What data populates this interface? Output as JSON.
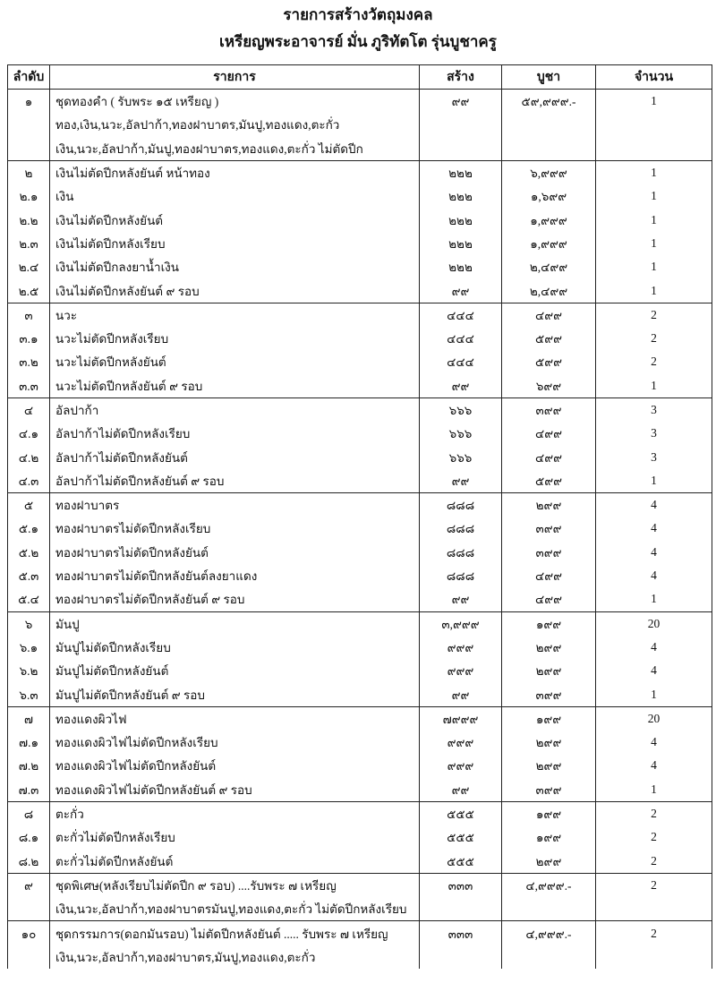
{
  "title": "รายการสร้างวัตถุมงคล",
  "subtitle": "เหรียญพระอาจารย์ มั่น ภูริทัตโต รุ่นบูชาครู",
  "columns": [
    "ลำดับ",
    "รายการ",
    "สร้าง",
    "บูชา",
    "จำนวน"
  ],
  "groups": [
    [
      [
        "๑",
        "ชุดทองคำ ( รับพระ ๑๕ เหรียญ )",
        "๙๙",
        "๕๙,๙๙๙.-",
        "1"
      ],
      [
        "",
        "ทอง,เงิน,นวะ,อัลปาก้า,ทองฝาบาตร,มันปู,ทองแดง,ตะกั่ว",
        "",
        "",
        ""
      ],
      [
        "",
        "เงิน,นวะ,อัลปาก้า,มันปู,ทองฝาบาตร,ทองแดง,ตะกั่ว  ไม่ตัดปีก",
        "",
        "",
        ""
      ]
    ],
    [
      [
        "๒",
        "เงินไม่ตัดปีกหลังยันต์ หน้าทอง",
        "๒๒๒",
        "๖,๙๙๙",
        "1"
      ],
      [
        "๒.๑",
        "เงิน",
        "๒๒๒",
        "๑,๖๙๙",
        "1"
      ],
      [
        "๒.๒",
        "เงินไม่ตัดปีกหลังยันต์",
        "๒๒๒",
        "๑,๙๙๙",
        "1"
      ],
      [
        "๒.๓",
        "เงินไม่ตัดปีกหลังเรียบ",
        "๒๒๒",
        "๑,๙๙๙",
        "1"
      ],
      [
        "๒.๔",
        "เงินไม่ตัดปีกลงยาน้ำเงิน",
        "๒๒๒",
        "๒,๔๙๙",
        "1"
      ],
      [
        "๒.๕",
        "เงินไม่ตัดปีกหลังยันต์ ๙ รอบ",
        "๙๙",
        "๒,๔๙๙",
        "1"
      ]
    ],
    [
      [
        "๓",
        "นวะ",
        "๔๔๔",
        "๔๙๙",
        "2"
      ],
      [
        "๓.๑",
        "นวะไม่ตัดปีกหลังเรียบ",
        "๔๔๔",
        "๕๙๙",
        "2"
      ],
      [
        "๓.๒",
        "นวะไม่ตัดปีกหลังยันต์",
        "๔๔๔",
        "๕๙๙",
        "2"
      ],
      [
        "๓.๓",
        "นวะไม่ตัดปีกหลังยันต์ ๙ รอบ",
        "๙๙",
        "๖๙๙",
        "1"
      ]
    ],
    [
      [
        "๔",
        "อัลปาก้า",
        "๖๖๖",
        "๓๙๙",
        "3"
      ],
      [
        "๔.๑",
        "อัลปาก้าไม่ตัดปีกหลังเรียบ",
        "๖๖๖",
        "๔๙๙",
        "3"
      ],
      [
        "๔.๒",
        "อัลปาก้าไม่ตัดปีกหลังยันต์",
        "๖๖๖",
        "๔๙๙",
        "3"
      ],
      [
        "๔.๓",
        "อัลปาก้าไม่ตัดปีกหลังยันต์ ๙ รอบ",
        "๙๙",
        "๕๙๙",
        "1"
      ]
    ],
    [
      [
        "๕",
        "ทองฝาบาตร",
        "๘๘๘",
        "๒๙๙",
        "4"
      ],
      [
        "๕.๑",
        "ทองฝาบาตรไม่ตัดปีกหลังเรียบ",
        "๘๘๘",
        "๓๙๙",
        "4"
      ],
      [
        "๕.๒",
        "ทองฝาบาตรไม่ตัดปีกหลังยันต์",
        "๘๘๘",
        "๓๙๙",
        "4"
      ],
      [
        "๕.๓",
        "ทองฝาบาตรไม่ตัดปีกหลังยันต์ลงยาแดง",
        "๘๘๘",
        "๔๙๙",
        "4"
      ],
      [
        "๕.๔",
        "ทองฝาบาตรไม่ตัดปีกหลังยันต์ ๙ รอบ",
        "๙๙",
        "๔๙๙",
        "1"
      ]
    ],
    [
      [
        "๖",
        "มันปู",
        "๓,๙๙๙",
        "๑๙๙",
        "20"
      ],
      [
        "๖.๑",
        "มันปูไม่ตัดปีกหลังเรียบ",
        "๙๙๙",
        "๒๙๙",
        "4"
      ],
      [
        "๖.๒",
        "มันปูไม่ตัดปีกหลังยันต์",
        "๙๙๙",
        "๒๙๙",
        "4"
      ],
      [
        "๖.๓",
        "มันปูไม่ตัดปีกหลังยันต์ ๙ รอบ",
        "๙๙",
        "๓๙๙",
        "1"
      ]
    ],
    [
      [
        "๗",
        "ทองแดงผิวไฟ",
        "๗๙๙๙",
        "๑๙๙",
        "20"
      ],
      [
        "๗.๑",
        "ทองแดงผิวไฟไม่ตัดปีกหลังเรียบ",
        "๙๙๙",
        "๒๙๙",
        "4"
      ],
      [
        "๗.๒",
        "ทองแดงผิวไฟไม่ตัดปีกหลังยันต์",
        "๙๙๙",
        "๒๙๙",
        "4"
      ],
      [
        "๗.๓",
        "ทองแดงผิวไฟไม่ตัดปีกหลังยันต์ ๙ รอบ",
        "๙๙",
        "๓๙๙",
        "1"
      ]
    ],
    [
      [
        "๘",
        "ตะกั่ว",
        "๕๕๕",
        "๑๙๙",
        "2"
      ],
      [
        "๘.๑",
        "ตะกั่วไม่ตัดปีกหลังเรียบ",
        "๕๕๕",
        "๑๙๙",
        "2"
      ],
      [
        "๘.๒",
        "ตะกั่วไม่ตัดปีกหลังยันต์",
        "๕๕๕",
        "๒๙๙",
        "2"
      ]
    ],
    [
      [
        "๙",
        "ชุดพิเศษ(หลังเรียบไม่ตัดปีก ๙ รอบ) ....รับพระ ๗ เหรียญ",
        "๓๓๓",
        "๔,๙๙๙.-",
        "2"
      ],
      [
        "",
        "เงิน,นวะ,อัลปาก้า,ทองฝาบาตรมันปู,ทองแดง,ตะกั่ว ไม่ตัดปีกหลังเรียบ",
        "",
        "",
        ""
      ]
    ],
    [
      [
        "๑๐",
        "ชุดกรรมการ(ดอกมันรอบ) ไม่ตัดปีกหลังยันต์ ..... รับพระ ๗ เหรียญ",
        "๓๓๓",
        "๔,๙๙๙.-",
        "2"
      ],
      [
        "",
        "เงิน,นวะ,อัลปาก้า,ทองฝาบาตร,มันปู,ทองแดง,ตะกั่ว",
        "",
        "",
        ""
      ]
    ]
  ]
}
